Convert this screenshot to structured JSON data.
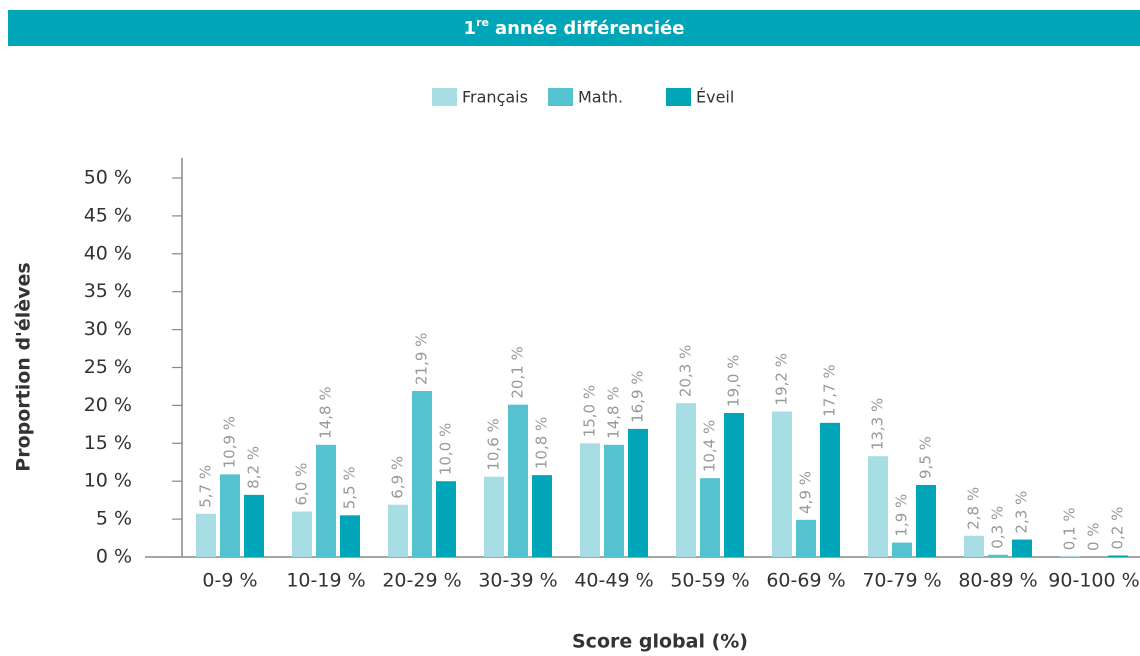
{
  "chart_data": {
    "type": "bar",
    "title": {
      "number": "1",
      "superscript": "re",
      "text": "année différenciée"
    },
    "x_label": "Score global (%)",
    "y_label": "Proportion d'élèves",
    "categories": [
      "0-9 %",
      "10-19 %",
      "20-29 %",
      "30-39 %",
      "40-49 %",
      "50-59 %",
      "60-69 %",
      "70-79 %",
      "80-89 %",
      "90-100 %"
    ],
    "series": [
      {
        "name": "Français",
        "color": "#a8dde4",
        "values": [
          5.7,
          6.0,
          6.9,
          10.6,
          15.0,
          20.3,
          19.2,
          13.3,
          2.8,
          0.1
        ],
        "value_labels": [
          "5,7 %",
          "6,0 %",
          "6,9 %",
          "10,6 %",
          "15,0 %",
          "20,3 %",
          "19,2 %",
          "13,3 %",
          "2,8 %",
          "0,1 %"
        ]
      },
      {
        "name": "Math.",
        "color": "#55c3cf",
        "values": [
          10.9,
          14.8,
          21.9,
          20.1,
          14.8,
          10.4,
          4.9,
          1.9,
          0.3,
          0
        ],
        "value_labels": [
          "10,9 %",
          "14,8 %",
          "21,9 %",
          "20,1 %",
          "14,8 %",
          "10,4 %",
          "4,9 %",
          "1,9 %",
          "0,3 %",
          "0 %"
        ]
      },
      {
        "name": "Éveil",
        "color": "#00a6b8",
        "values": [
          8.2,
          5.5,
          10.0,
          10.8,
          16.9,
          19.0,
          17.7,
          9.5,
          2.3,
          0.2
        ],
        "value_labels": [
          "8,2 %",
          "5,5 %",
          "10,0 %",
          "10,8 %",
          "16,9 %",
          "19,0 %",
          "17,7 %",
          "9,5 %",
          "2,3 %",
          "0,2 %"
        ]
      }
    ],
    "ylim": [
      0,
      50
    ],
    "yticks": [
      {
        "value": 0,
        "label": "0 %"
      },
      {
        "value": 5,
        "label": "5 %"
      },
      {
        "value": 10,
        "label": "10 %"
      },
      {
        "value": 15,
        "label": "15 %"
      },
      {
        "value": 20,
        "label": "20 %"
      },
      {
        "value": 25,
        "label": "25 %"
      },
      {
        "value": 30,
        "label": "30 %"
      },
      {
        "value": 35,
        "label": "35 %"
      },
      {
        "value": 40,
        "label": "40 %"
      },
      {
        "value": 45,
        "label": "45 %"
      },
      {
        "value": 50,
        "label": "50 %"
      }
    ],
    "legend": "top",
    "title_color": "#00a6b8"
  }
}
